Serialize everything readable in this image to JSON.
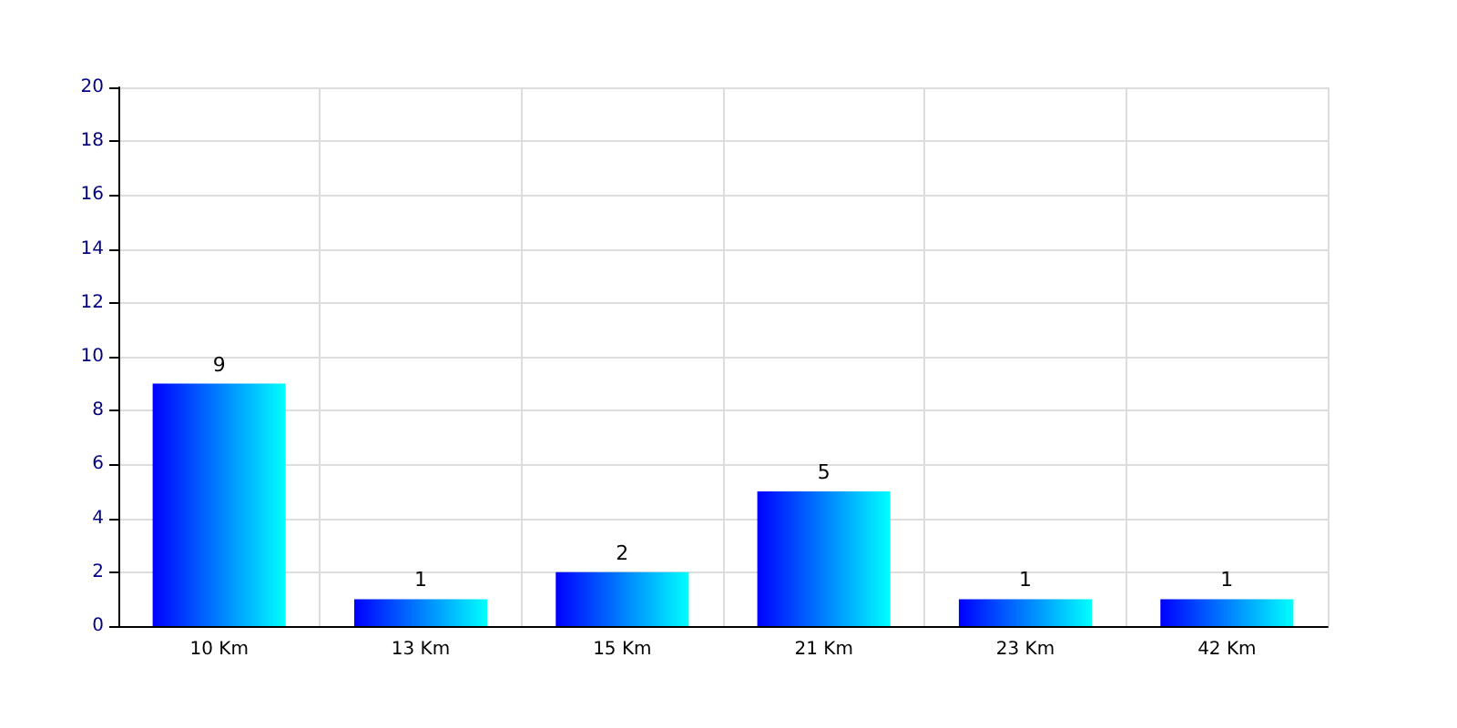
{
  "chart_data": {
    "type": "bar",
    "categories": [
      "10 Km",
      "13 Km",
      "15 Km",
      "21 Km",
      "23 Km",
      "42 Km"
    ],
    "values": [
      9,
      1,
      2,
      5,
      1,
      1
    ],
    "color": "#0000ff",
    "ylim": [
      0,
      20
    ],
    "yticks": [
      0,
      2,
      4,
      6,
      8,
      10,
      12,
      14,
      16,
      18,
      20
    ],
    "grid": true,
    "data_labels": true
  }
}
